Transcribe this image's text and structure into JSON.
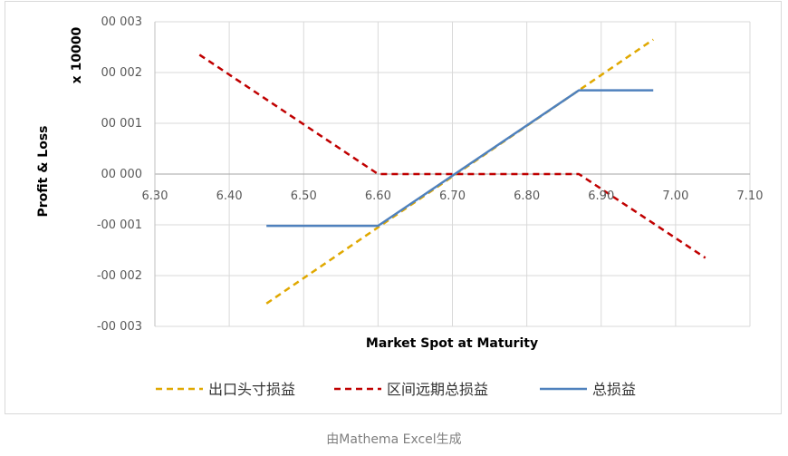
{
  "chart_data": {
    "type": "line",
    "ylabel": "Profit & Loss",
    "yscale_note": "x 10000",
    "xlabel": "Market Spot at Maturity",
    "xlim": [
      6.3,
      7.1
    ],
    "ylim": [
      -3,
      3
    ],
    "x_tick_labels": [
      "6.30",
      "6.40",
      "6.50",
      "6.60",
      "6.70",
      "6.80",
      "6.90",
      "7.00",
      "7.10"
    ],
    "y_tick_labels": [
      "00 003",
      "00 002",
      "00 001",
      "00 000",
      "-00 001",
      "-00 002",
      "-00 003"
    ],
    "grid": true,
    "legend_position": "bottom",
    "series": [
      {
        "name": "出口头寸损益",
        "color": "#e0a800",
        "dash": "dashed",
        "x": [
          6.45,
          6.97
        ],
        "y": [
          -2.55,
          2.65
        ]
      },
      {
        "name": "区间远期总损益",
        "color": "#c00000",
        "dash": "dashed",
        "x": [
          6.36,
          6.6,
          6.87,
          7.04
        ],
        "y": [
          2.35,
          0,
          0,
          -1.65
        ]
      },
      {
        "name": "总损益",
        "color": "#4f81bd",
        "dash": "solid",
        "x": [
          6.45,
          6.6,
          6.87,
          6.97
        ],
        "y": [
          -1.02,
          -1.02,
          1.65,
          1.65
        ]
      }
    ]
  },
  "caption": "由Mathema Excel生成"
}
